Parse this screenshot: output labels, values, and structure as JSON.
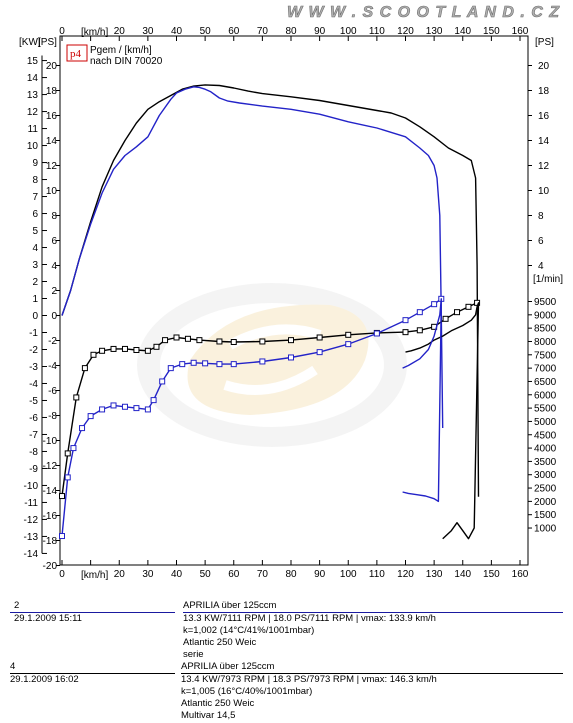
{
  "header": {
    "site": "W W W . S C O O T L A N D . C Z"
  },
  "chart_data": [
    {
      "type": "line",
      "xlabel": "[km/h]",
      "x_unit_top": "[km/h]",
      "xlim": [
        0,
        160
      ],
      "x_ticks": [
        0,
        10,
        20,
        30,
        40,
        50,
        60,
        70,
        80,
        90,
        100,
        110,
        120,
        130,
        140,
        150,
        160
      ],
      "y_left_kw": {
        "label": "[KW]",
        "lim": [
          -14,
          15.5
        ],
        "ticks": [
          15,
          14,
          13,
          12,
          11,
          10,
          9,
          8,
          7,
          6,
          5,
          4,
          3,
          2,
          1,
          0,
          -1,
          -2,
          -3,
          -4,
          -5,
          -6,
          -7,
          -8,
          -9,
          -10,
          -11,
          -12,
          -13,
          -14
        ]
      },
      "y_left_ps": {
        "label": "[PS]",
        "lim": [
          -20,
          21
        ],
        "ticks": [
          20,
          18,
          16,
          14,
          12,
          10,
          8,
          6,
          4,
          2,
          0,
          -2,
          -4,
          -6,
          -8,
          -10,
          -12,
          -14,
          -16,
          -18,
          -20
        ]
      },
      "y_right_ps": {
        "label": "[PS]",
        "ticks": [
          20,
          18,
          16,
          14,
          12,
          10,
          8,
          6,
          4
        ]
      },
      "y_right_rpm": {
        "label": "[1/min]",
        "ticks": [
          9500,
          9000,
          8500,
          8000,
          7500,
          7000,
          6500,
          6000,
          5500,
          5000,
          4500,
          4000,
          3500,
          3000,
          2500,
          2000,
          1500,
          1000
        ]
      },
      "legend_box": {
        "tag": "p4",
        "line1": "Pgem / [km/h]",
        "line2": "nach DIN 70020"
      },
      "grid": false,
      "series": [
        {
          "color": "#000000",
          "kind": "power",
          "x": [
            0,
            3,
            6,
            10,
            14,
            18,
            22,
            26,
            30,
            34,
            38,
            42,
            46,
            50,
            55,
            60,
            65,
            70,
            80,
            90,
            100,
            110,
            115,
            120,
            125,
            130,
            135,
            140,
            143,
            144.5,
            145,
            145.5
          ],
          "y_ps": [
            0,
            2,
            4.5,
            7.5,
            10.3,
            12.4,
            14,
            15.4,
            16.5,
            17.1,
            17.6,
            18.1,
            18.35,
            18.45,
            18.4,
            18.2,
            17.95,
            17.75,
            17.5,
            17.2,
            16.8,
            16.4,
            16.2,
            15.8,
            15.1,
            14.3,
            13.4,
            12.8,
            12.4,
            11,
            4,
            -14.5
          ]
        },
        {
          "color": "#2323c8",
          "kind": "power",
          "x": [
            0,
            3,
            6,
            10,
            14,
            18,
            22,
            26,
            30,
            34,
            38,
            40,
            43,
            46,
            48,
            50,
            52,
            55,
            58,
            62,
            70,
            80,
            90,
            100,
            110,
            120,
            125,
            128,
            130,
            131,
            132,
            132.5,
            133
          ],
          "y_ps": [
            0,
            2,
            4.5,
            7.3,
            9.8,
            11.7,
            12.8,
            13.5,
            14.3,
            16,
            17.3,
            17.8,
            18.1,
            18.3,
            18.25,
            18.1,
            17.9,
            17.4,
            17.15,
            17,
            16.75,
            16.5,
            16.1,
            15.5,
            15,
            14.3,
            13.4,
            12.8,
            12,
            11,
            8,
            0,
            -9
          ]
        },
        {
          "color": "#000000",
          "kind": "rpm_markers",
          "x": [
            0,
            2,
            5,
            8,
            11,
            14,
            18,
            22,
            26,
            30,
            33,
            36,
            40,
            44,
            48,
            55,
            60,
            70,
            80,
            90,
            100,
            110,
            120,
            125,
            130,
            134,
            138,
            142,
            145
          ],
          "rpm": [
            2200,
            3800,
            5900,
            7000,
            7500,
            7650,
            7720,
            7720,
            7680,
            7650,
            7800,
            8050,
            8150,
            8100,
            8050,
            8000,
            7980,
            8000,
            8050,
            8150,
            8250,
            8320,
            8350,
            8420,
            8550,
            8850,
            9100,
            9300,
            9450
          ]
        },
        {
          "color": "#000000",
          "kind": "rpm_tail",
          "x": [
            120,
            122,
            125,
            128,
            130,
            133,
            136,
            140,
            143,
            144.5,
            145,
            145.5,
            144,
            142,
            140,
            138,
            136,
            133
          ],
          "rpm": [
            7600,
            7650,
            7750,
            7900,
            8050,
            8200,
            8400,
            8600,
            8800,
            9000,
            9300,
            9450,
            1000,
            600,
            900,
            1200,
            900,
            600
          ]
        },
        {
          "color": "#2323c8",
          "kind": "rpm_markers",
          "x": [
            0,
            2,
            4,
            7,
            10,
            14,
            18,
            22,
            26,
            30,
            32,
            35,
            38,
            42,
            46,
            50,
            55,
            60,
            70,
            80,
            90,
            100,
            110,
            120,
            125,
            130,
            132.5
          ],
          "rpm": [
            700,
            2900,
            4000,
            4750,
            5200,
            5450,
            5600,
            5550,
            5500,
            5450,
            5800,
            6500,
            7000,
            7150,
            7200,
            7180,
            7150,
            7150,
            7250,
            7400,
            7600,
            7900,
            8300,
            8800,
            9100,
            9400,
            9600
          ]
        },
        {
          "color": "#2323c8",
          "kind": "rpm_tail",
          "x": [
            119,
            121,
            125,
            128,
            130,
            132,
            132.5,
            131.5,
            130,
            127,
            124,
            121,
            119
          ],
          "rpm": [
            7000,
            7100,
            7350,
            7700,
            8200,
            9000,
            9600,
            2000,
            2100,
            2200,
            2250,
            2300,
            2350
          ]
        }
      ]
    }
  ],
  "runs": [
    {
      "id": "2",
      "date_time": "29.1.2009   15:11",
      "title": "APRILIA über 125ccm",
      "specs": "13.3 KW/7111 RPM   |   18.0 PS/7111 RPM   |   vmax: 133.9 km/h",
      "correction": "k=1,002  (14°C/41%/1001mbar)",
      "vehicle": "Atlantic 250 Weic",
      "note": "serie"
    },
    {
      "id": "4",
      "date_time": "29.1.2009   16:02",
      "title": "APRILIA über 125ccm",
      "specs": "13.4 KW/7973 RPM   |   18.3 PS/7973 RPM   |   vmax: 146.3 km/h",
      "correction": "k=1,005  (16°C/40%/1001mbar)",
      "vehicle": "Atlantic 250 Weic",
      "note": "Multivar 14,5"
    }
  ]
}
